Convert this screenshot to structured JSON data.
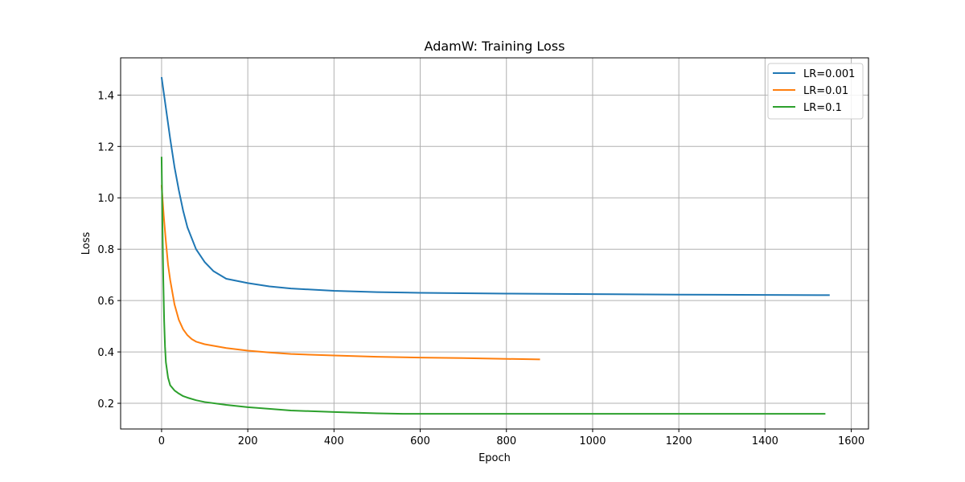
{
  "chart_data": {
    "type": "line",
    "title": "AdamW: Training Loss",
    "xlabel": "Epoch",
    "ylabel": "Loss",
    "xlim": [
      -95,
      1640
    ],
    "ylim": [
      0.1,
      1.545
    ],
    "xticks": [
      0,
      200,
      400,
      600,
      800,
      1000,
      1200,
      1400,
      1600
    ],
    "yticks": [
      0.2,
      0.4,
      0.6,
      0.8,
      1.0,
      1.2,
      1.4
    ],
    "grid": true,
    "legend_position": "top-right",
    "series": [
      {
        "name": "LR=0.001",
        "color": "#1f77b4",
        "x": [
          0,
          10,
          20,
          30,
          40,
          50,
          60,
          80,
          100,
          120,
          150,
          200,
          250,
          300,
          400,
          500,
          600,
          800,
          1000,
          1200,
          1400,
          1550
        ],
        "y": [
          1.47,
          1.35,
          1.23,
          1.12,
          1.03,
          0.95,
          0.885,
          0.8,
          0.75,
          0.715,
          0.685,
          0.668,
          0.655,
          0.647,
          0.638,
          0.633,
          0.63,
          0.627,
          0.625,
          0.623,
          0.622,
          0.621
        ]
      },
      {
        "name": "LR=0.01",
        "color": "#ff7f0e",
        "x": [
          0,
          5,
          10,
          15,
          20,
          30,
          40,
          50,
          60,
          70,
          80,
          100,
          150,
          200,
          250,
          300,
          400,
          500,
          600,
          700,
          800,
          878
        ],
        "y": [
          1.05,
          0.93,
          0.83,
          0.74,
          0.68,
          0.585,
          0.525,
          0.488,
          0.465,
          0.45,
          0.44,
          0.43,
          0.415,
          0.405,
          0.398,
          0.392,
          0.386,
          0.381,
          0.378,
          0.376,
          0.373,
          0.371
        ]
      },
      {
        "name": "LR=0.1",
        "color": "#2ca02c",
        "x": [
          0,
          2,
          4,
          6,
          8,
          10,
          15,
          20,
          30,
          40,
          50,
          60,
          80,
          100,
          150,
          200,
          300,
          400,
          500,
          560,
          800,
          1000,
          1200,
          1400,
          1540
        ],
        "y": [
          1.16,
          0.9,
          0.68,
          0.52,
          0.42,
          0.36,
          0.3,
          0.27,
          0.25,
          0.238,
          0.228,
          0.222,
          0.212,
          0.205,
          0.194,
          0.185,
          0.172,
          0.166,
          0.161,
          0.159,
          0.159,
          0.159,
          0.159,
          0.159,
          0.159
        ]
      }
    ]
  }
}
